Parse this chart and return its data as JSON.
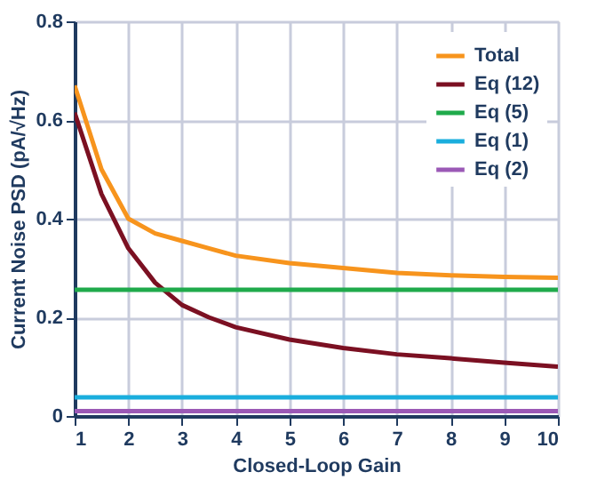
{
  "chart_data": {
    "type": "line",
    "xlabel": "Closed-Loop Gain",
    "ylabel": "Current Noise PSD (pA/√Hz)",
    "x": [
      1,
      1.5,
      2,
      2.5,
      3,
      3.5,
      4,
      5,
      6,
      7,
      8,
      9,
      10
    ],
    "xlim": [
      1,
      10
    ],
    "xticks": [
      1,
      2,
      3,
      4,
      5,
      6,
      7,
      8,
      9,
      10
    ],
    "ylim": [
      0,
      0.8
    ],
    "yticks": [
      0,
      0.2,
      0.4,
      0.6,
      0.8
    ],
    "grid": true,
    "legend": "top right",
    "marker": "none",
    "line_style": "solid",
    "series": [
      {
        "name": "Total",
        "color": "#f7941d",
        "values": [
          0.67,
          0.5,
          0.4,
          0.37,
          0.355,
          0.34,
          0.325,
          0.31,
          0.3,
          0.29,
          0.285,
          0.282,
          0.28
        ]
      },
      {
        "name": "Eq (12)",
        "color": "#7b1022",
        "values": [
          0.615,
          0.45,
          0.34,
          0.27,
          0.225,
          0.2,
          0.18,
          0.155,
          0.138,
          0.125,
          0.117,
          0.108,
          0.1
        ]
      },
      {
        "name": "Eq (5)",
        "color": "#1faa4b",
        "values": [
          0.256,
          0.256,
          0.256,
          0.256,
          0.256,
          0.256,
          0.256,
          0.256,
          0.256,
          0.256,
          0.256,
          0.256,
          0.256
        ]
      },
      {
        "name": "Eq (1)",
        "color": "#1aaedd",
        "values": [
          0.038,
          0.038,
          0.038,
          0.038,
          0.038,
          0.038,
          0.038,
          0.038,
          0.038,
          0.038,
          0.038,
          0.038,
          0.038
        ]
      },
      {
        "name": "Eq (2)",
        "color": "#9b59b6",
        "values": [
          0.01,
          0.01,
          0.01,
          0.01,
          0.01,
          0.01,
          0.01,
          0.01,
          0.01,
          0.01,
          0.01,
          0.01,
          0.01
        ]
      }
    ]
  }
}
